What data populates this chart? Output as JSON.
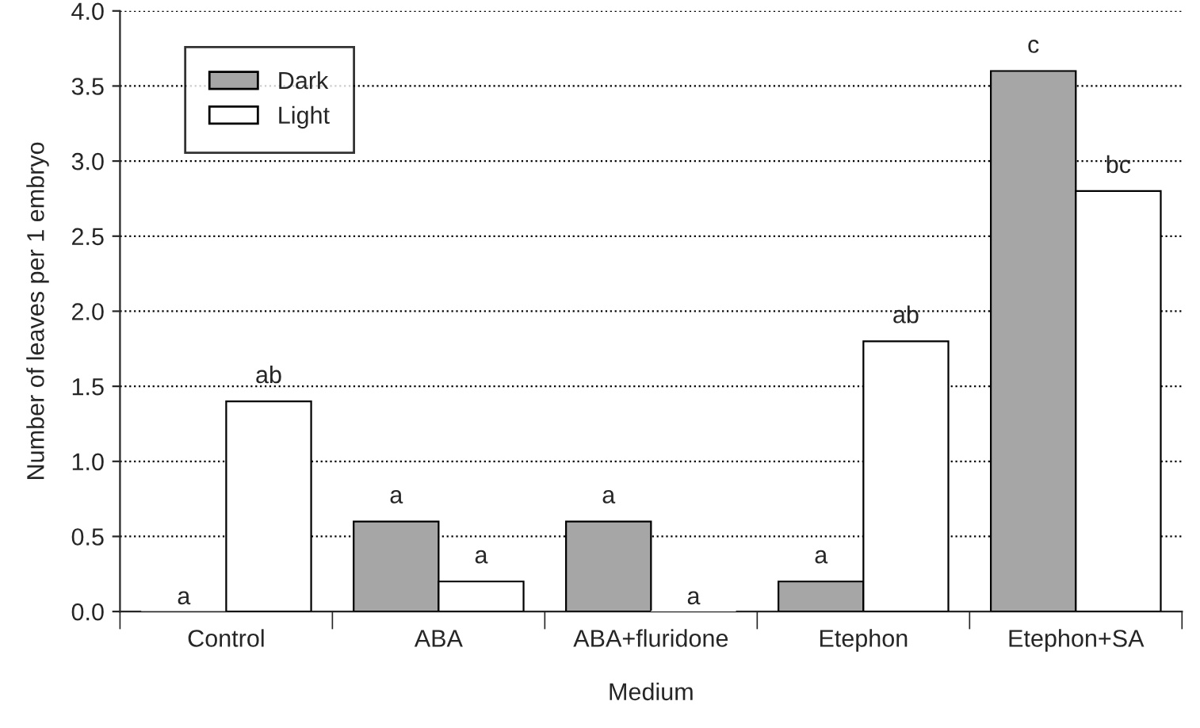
{
  "chart_data": {
    "type": "bar",
    "xlabel": "Medium",
    "ylabel": "Number of leaves per 1 embryo",
    "categories": [
      "Control",
      "ABA",
      "ABA+fluridone",
      "Etephon",
      "Etephon+SA"
    ],
    "series": [
      {
        "name": "Dark",
        "color": "#a6a6a6",
        "values": [
          0,
          0.6,
          0.6,
          0.2,
          3.6
        ],
        "value_labels": [
          "a",
          "a",
          "a",
          "a",
          "c"
        ]
      },
      {
        "name": "Light",
        "color": "#ffffff",
        "values": [
          1.4,
          0.2,
          0,
          1.8,
          2.8
        ],
        "value_labels": [
          "ab",
          "a",
          "a",
          "ab",
          "bc"
        ]
      }
    ],
    "ylim": [
      0,
      4
    ],
    "yticks": [
      {
        "value": 0,
        "label": "0.0"
      },
      {
        "value": 0.5,
        "label": "0.5"
      },
      {
        "value": 1,
        "label": "1.0"
      },
      {
        "value": 1.5,
        "label": "1.5"
      },
      {
        "value": 2,
        "label": "2.0"
      },
      {
        "value": 2.5,
        "label": "2.5"
      },
      {
        "value": 3,
        "label": "3.0"
      },
      {
        "value": 3.5,
        "label": "3.5"
      },
      {
        "value": 4,
        "label": "4.0"
      }
    ],
    "grid": "y",
    "legend": "top left"
  }
}
